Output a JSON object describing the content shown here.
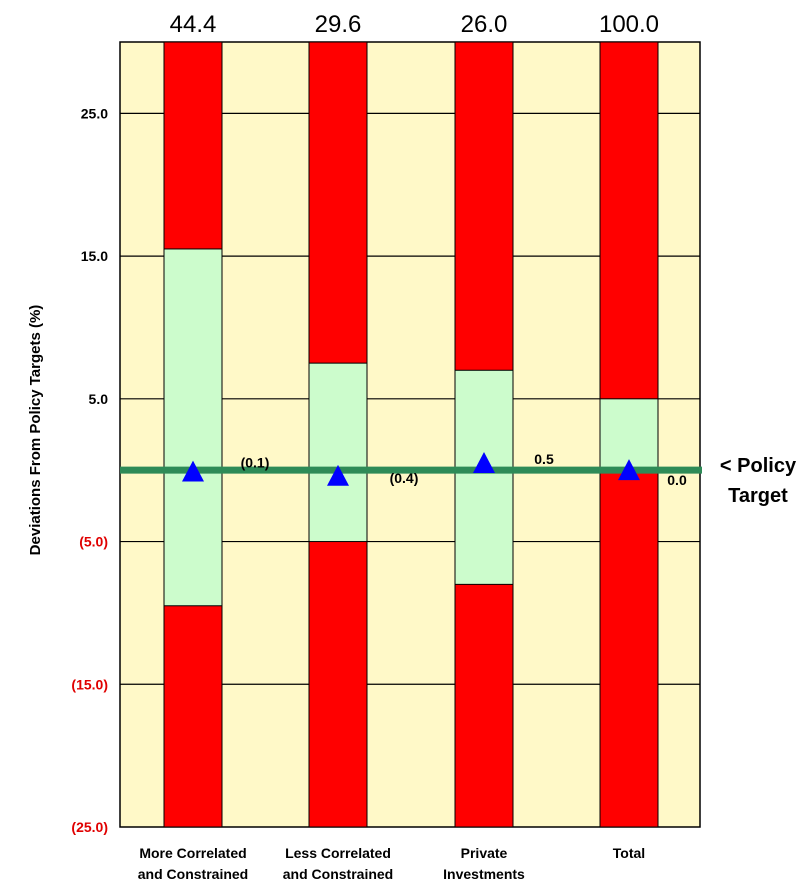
{
  "chart_data": {
    "type": "bar",
    "ylabel": "Deviations From Policy Targets (%)",
    "ylim": [
      -25,
      30
    ],
    "y_ticks": [
      {
        "value": 25,
        "label": "25.0",
        "color": "#000000"
      },
      {
        "value": 15,
        "label": "15.0",
        "color": "#000000"
      },
      {
        "value": 5,
        "label": "5.0",
        "color": "#000000"
      },
      {
        "value": -5,
        "label": "(5.0)",
        "color": "#e00000"
      },
      {
        "value": -15,
        "label": "(15.0)",
        "color": "#e00000"
      },
      {
        "value": -25,
        "label": "(25.0)",
        "color": "#e00000"
      }
    ],
    "categories": [
      {
        "line1": "More Correlated",
        "line2": "and Constrained"
      },
      {
        "line1": "Less Correlated",
        "line2": "and Constrained"
      },
      {
        "line1": "Private",
        "line2": "Investments"
      },
      {
        "line1": "Total",
        "line2": ""
      }
    ],
    "target_weights": [
      "44.4",
      "29.6",
      "26.0",
      "100.0"
    ],
    "range_low": [
      -9.5,
      -5,
      -8,
      0
    ],
    "range_high": [
      15.5,
      7.5,
      7,
      5
    ],
    "current_deviation": [
      -0.1,
      -0.4,
      0.5,
      0.0
    ],
    "deviation_labels": [
      "(0.1)",
      "(0.4)",
      "0.5",
      "0.0"
    ],
    "policy_target_value": 0,
    "policy_label_line1": "< Policy",
    "policy_label_line2": "Target",
    "colors": {
      "plot_background": "#fff9c8",
      "column_fill": "#ff0000",
      "range_fill": "#ccfccc",
      "policy_line": "#2e8b57",
      "marker": "#0000ff",
      "negative_tick": "#e00000"
    }
  }
}
